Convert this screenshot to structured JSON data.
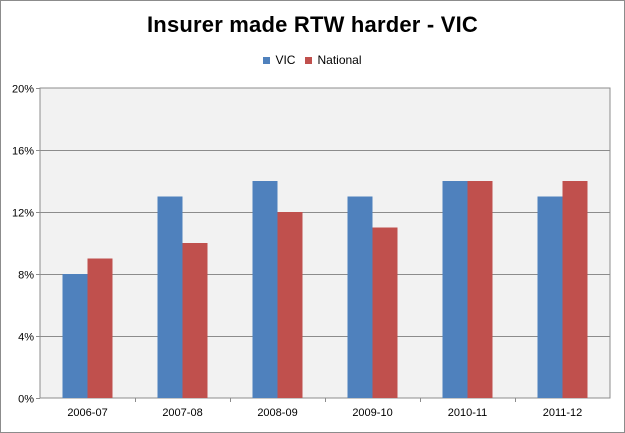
{
  "chart_data": {
    "type": "bar",
    "title": "Insurer made RTW harder - VIC",
    "categories": [
      "2006-07",
      "2007-08",
      "2008-09",
      "2009-10",
      "2010-11",
      "2011-12"
    ],
    "series": [
      {
        "name": "VIC",
        "color": "#4f81bd",
        "values": [
          8,
          13,
          14,
          13,
          14,
          13
        ]
      },
      {
        "name": "National",
        "color": "#c0504d",
        "values": [
          9,
          10,
          12,
          11,
          14,
          14
        ]
      }
    ],
    "y_ticks": [
      "0%",
      "4%",
      "8%",
      "12%",
      "16%",
      "20%"
    ],
    "ylim": [
      0,
      20
    ],
    "y_unit": "%",
    "grid": true,
    "legend_position": "top",
    "plot_background": "#f2f2f2"
  }
}
